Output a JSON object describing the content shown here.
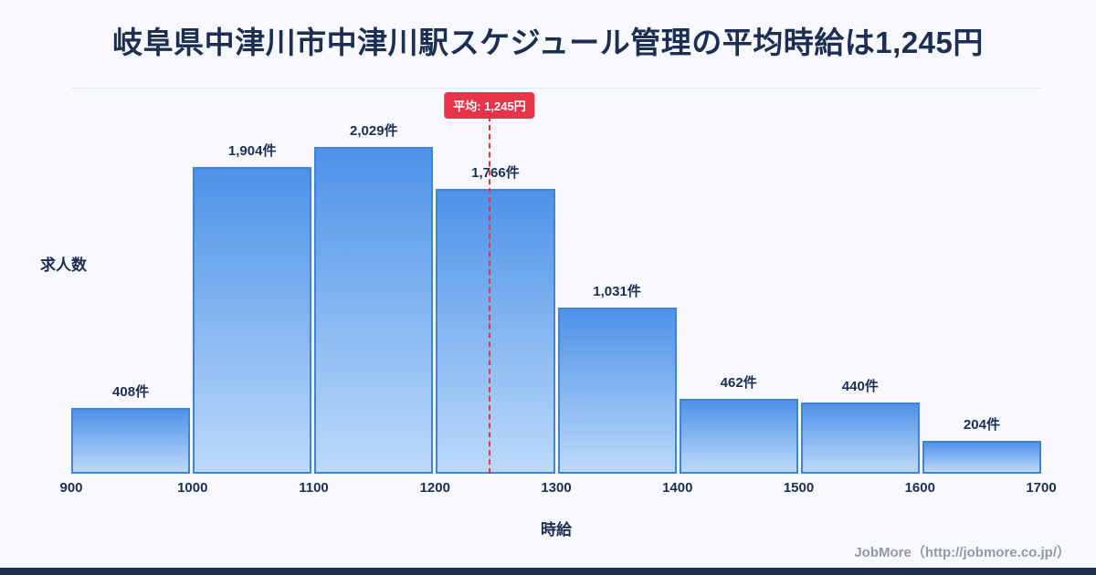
{
  "title": "岐阜県中津川市中津川駅スケジュール管理の平均時給は1,245円",
  "footer": {
    "credit": "JobMore（http://jobmore.co.jp/）"
  },
  "chart_data": {
    "type": "bar",
    "title": "岐阜県中津川市中津川駅スケジュール管理の平均時給は1,245円",
    "xlabel": "時給",
    "ylabel": "求人数",
    "bin_edges": [
      900,
      1000,
      1100,
      1200,
      1300,
      1400,
      1500,
      1600,
      1700
    ],
    "values": [
      408,
      1904,
      2029,
      1766,
      1031,
      462,
      440,
      204
    ],
    "value_labels": [
      "408件",
      "1,904件",
      "2,029件",
      "1,766件",
      "1,031件",
      "462件",
      "440件",
      "204件"
    ],
    "average": 1245,
    "average_label": "平均: 1,245円",
    "x_range": [
      900,
      1700
    ],
    "ylim": [
      0,
      2100
    ],
    "grid": false,
    "legend": "none",
    "colors": {
      "background": "#f7f9fc",
      "title_color": "#1c2f52",
      "bar_top": "#4e92e8",
      "bar_bottom": "#bcdafa",
      "bar_border": "#3f83dc",
      "average_line": "#e8344a",
      "badge_bg": "#e8344a",
      "footer_color": "#929aa8",
      "bottom_bar": "#1c2f52"
    }
  }
}
